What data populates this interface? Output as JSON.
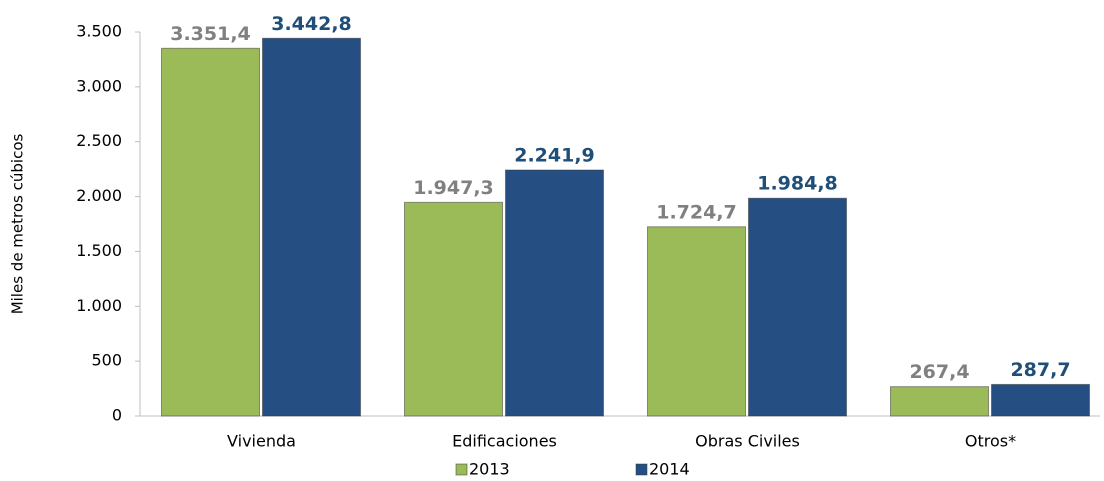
{
  "chart_data": {
    "type": "bar",
    "y_label": "Miles de metros cúbicos",
    "categories": [
      "Vivienda",
      "Edificaciones",
      "Obras Civiles",
      "Otros*"
    ],
    "series": [
      {
        "name": "2013",
        "color": "#9bbb59",
        "label_color": "#808080",
        "values": [
          3351.4,
          1947.3,
          1724.7,
          267.4
        ],
        "value_labels": [
          "3.351,4",
          "1.947,3",
          "1.724,7",
          "267,4"
        ]
      },
      {
        "name": "2014",
        "color": "#254e82",
        "label_color": "#1f4e79",
        "values": [
          3442.8,
          2241.9,
          1984.8,
          287.7
        ],
        "value_labels": [
          "3.442,8",
          "2.241,9",
          "1.984,8",
          "287,7"
        ]
      }
    ],
    "ylim": [
      0,
      3500
    ],
    "yticks": [
      0,
      500,
      {
        "value": 1000,
        "label": "1.000"
      },
      {
        "value": 1500,
        "label": "1.500"
      },
      {
        "value": 2000,
        "label": "2.000"
      },
      {
        "value": 2500,
        "label": "2.500"
      },
      {
        "value": 3000,
        "label": "3.000"
      },
      {
        "value": 3500,
        "label": "3.500"
      }
    ],
    "grid": false
  }
}
